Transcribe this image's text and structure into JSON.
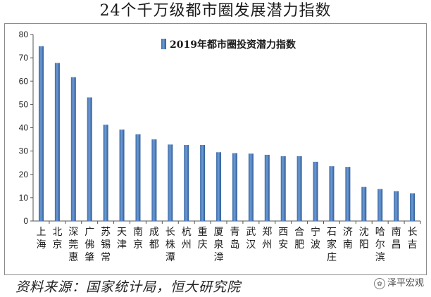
{
  "header": {
    "title": "24个千万级都市圈发展潜力指数"
  },
  "footer": {
    "source": "资料来源：国家统计局，恒大研究院",
    "watermark": "泽平宏观"
  },
  "chart_data": {
    "type": "bar",
    "title": "",
    "xlabel": "",
    "ylabel": "",
    "ylim": [
      0,
      80
    ],
    "yticks": [
      0,
      10,
      20,
      30,
      40,
      50,
      60,
      70,
      80
    ],
    "grid": false,
    "legend_position": "top-center",
    "bar_color": "#4f81bd",
    "categories": [
      "上海",
      "北京",
      "深莞惠",
      "广佛肇",
      "苏锡常",
      "天津",
      "南京",
      "成都",
      "长株潭",
      "杭州",
      "重庆",
      "厦泉漳",
      "青岛",
      "武汉",
      "郑州",
      "西安",
      "合肥",
      "宁波",
      "石家庄",
      "济南",
      "沈阳",
      "哈尔滨",
      "南昌",
      "长吉"
    ],
    "series": [
      {
        "name": "2019年都市圈投资潜力指数",
        "values": [
          75.0,
          67.8,
          61.7,
          53.0,
          41.3,
          39.2,
          37.2,
          35.0,
          32.8,
          32.6,
          32.6,
          29.5,
          29.1,
          28.9,
          28.4,
          27.8,
          27.8,
          25.4,
          23.5,
          23.2,
          14.6,
          13.7,
          12.8,
          11.9
        ]
      }
    ]
  }
}
